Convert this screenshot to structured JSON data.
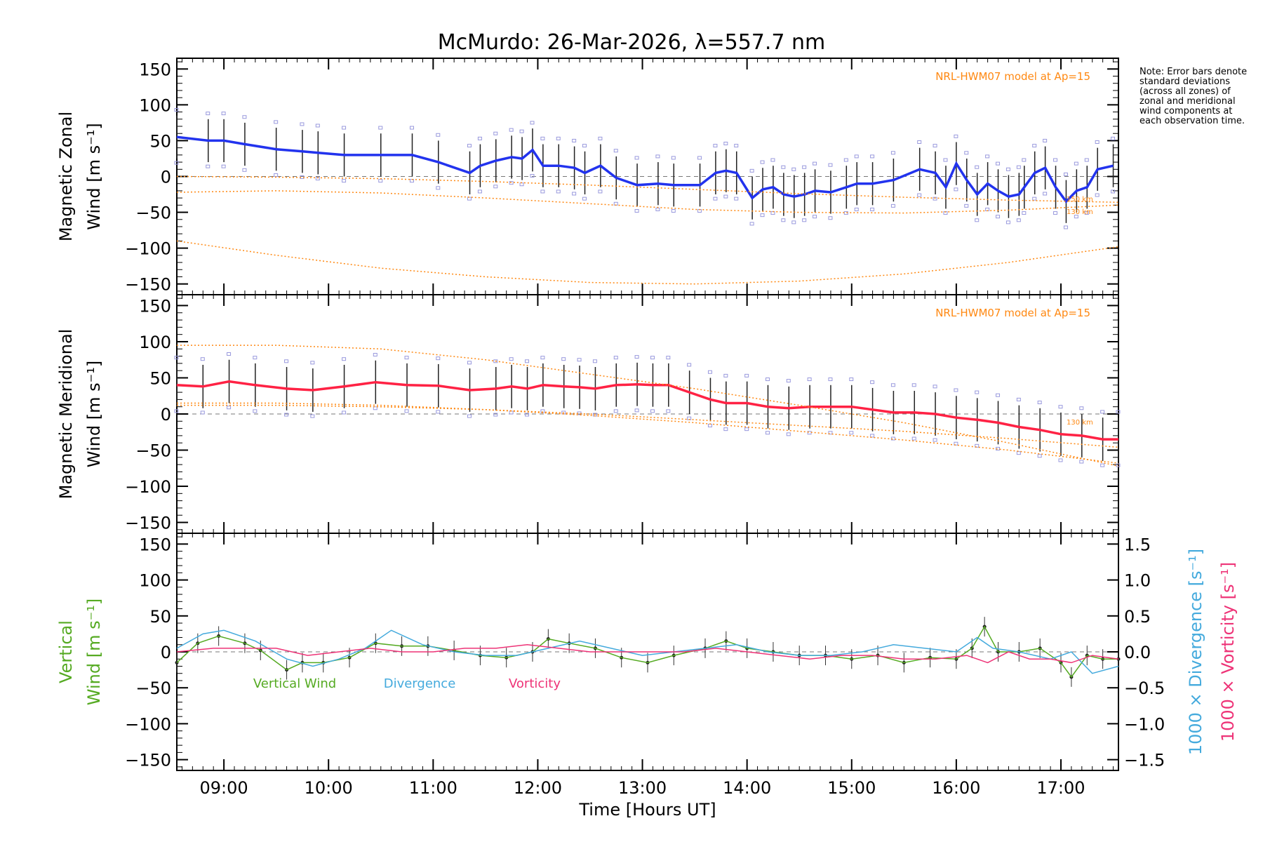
{
  "title": "McMurdo: 26-Mar-2026, λ=557.7 nm",
  "note": "Note: Error bars denote standard deviations (across all zones) of zonal and meridional wind components at each observation time.",
  "chart_data": [
    {
      "type": "line",
      "name": "zonal",
      "ylabel_line1": "Magnetic Zonal",
      "ylabel_line2": "Wind [m s⁻¹]",
      "model_label": "NRL-HWM07 model at Ap=15",
      "ylim": [
        -165,
        165
      ],
      "yticks": [
        150,
        100,
        50,
        0,
        -50,
        -100,
        -150
      ],
      "xlim": [
        8.55,
        17.55
      ],
      "series": [
        {
          "name": "Zonal wind",
          "color": "#2233ee",
          "x": [
            8.55,
            8.85,
            9.0,
            9.2,
            9.5,
            9.75,
            9.9,
            10.15,
            10.5,
            10.8,
            11.05,
            11.35,
            11.45,
            11.6,
            11.75,
            11.85,
            11.95,
            12.05,
            12.2,
            12.35,
            12.45,
            12.6,
            12.75,
            12.95,
            13.15,
            13.3,
            13.55,
            13.7,
            13.8,
            13.9,
            14.05,
            14.15,
            14.25,
            14.35,
            14.45,
            14.55,
            14.65,
            14.8,
            14.95,
            15.05,
            15.2,
            15.4,
            15.65,
            15.8,
            15.9,
            16.0,
            16.1,
            16.2,
            16.3,
            16.4,
            16.5,
            16.6,
            16.65,
            16.75,
            16.85,
            16.95,
            17.05,
            17.15,
            17.25,
            17.35,
            17.5
          ],
          "y": [
            55,
            50,
            50,
            45,
            38,
            35,
            33,
            30,
            30,
            30,
            20,
            5,
            15,
            22,
            27,
            25,
            37,
            15,
            15,
            12,
            5,
            15,
            -2,
            -12,
            -10,
            -12,
            -12,
            5,
            8,
            5,
            -30,
            -18,
            -15,
            -25,
            -28,
            -25,
            -20,
            -22,
            -15,
            -10,
            -10,
            -5,
            10,
            5,
            -15,
            18,
            -5,
            -25,
            -10,
            -20,
            -28,
            -25,
            -15,
            5,
            12,
            -15,
            -35,
            -20,
            -15,
            10,
            15
          ]
        },
        {
          "name": "HWM07 150 km",
          "color": "#ff8811",
          "x": [
            8.55,
            9.5,
            10.5,
            11.5,
            12.5,
            13.5,
            14.5,
            15.5,
            16.5,
            17.55
          ],
          "y": [
            0,
            -1,
            -3,
            -7,
            -12,
            -18,
            -24,
            -29,
            -33,
            -36
          ]
        },
        {
          "name": "HWM07 130 km",
          "color": "#ff8811",
          "x": [
            8.55,
            9.5,
            10.5,
            11.5,
            12.5,
            13.5,
            14.5,
            15.5,
            16.5,
            17.55
          ],
          "y": [
            -22,
            -20,
            -23,
            -30,
            -38,
            -46,
            -50,
            -51,
            -47,
            -40
          ]
        },
        {
          "name": "HWM07 100 km",
          "color": "#ff8811",
          "x": [
            8.55,
            9.5,
            10.5,
            11.5,
            12.5,
            13.5,
            14.5,
            15.5,
            16.5,
            17.55
          ],
          "y": [
            -90,
            -110,
            -128,
            -140,
            -148,
            -150,
            -146,
            -136,
            -120,
            -98
          ]
        }
      ],
      "annotations": [
        "150 km",
        "130 km"
      ]
    },
    {
      "type": "line",
      "name": "meridional",
      "ylabel_line1": "Magnetic Meridional",
      "ylabel_line2": "Wind [m s⁻¹]",
      "model_label": "NRL-HWM07 model at Ap=15",
      "ylim": [
        -165,
        165
      ],
      "yticks": [
        150,
        100,
        50,
        0,
        -50,
        -100,
        -150
      ],
      "xlim": [
        8.55,
        17.55
      ],
      "series": [
        {
          "name": "Meridional wind",
          "color": "#ff2244",
          "x": [
            8.55,
            8.8,
            9.05,
            9.3,
            9.6,
            9.85,
            10.15,
            10.45,
            10.75,
            11.05,
            11.35,
            11.6,
            11.75,
            11.9,
            12.05,
            12.25,
            12.4,
            12.55,
            12.75,
            12.95,
            13.1,
            13.25,
            13.45,
            13.65,
            13.8,
            14.0,
            14.2,
            14.4,
            14.6,
            14.8,
            15.0,
            15.2,
            15.4,
            15.6,
            15.8,
            16.0,
            16.2,
            16.4,
            16.6,
            16.8,
            17.0,
            17.2,
            17.4,
            17.55
          ],
          "y": [
            40,
            38,
            45,
            40,
            35,
            33,
            38,
            44,
            40,
            39,
            33,
            35,
            38,
            35,
            40,
            38,
            37,
            35,
            40,
            41,
            40,
            40,
            30,
            20,
            15,
            15,
            10,
            8,
            10,
            10,
            10,
            6,
            2,
            2,
            0,
            -5,
            -8,
            -12,
            -18,
            -22,
            -28,
            -30,
            -35,
            -35
          ]
        },
        {
          "name": "HWM07 150 km",
          "color": "#ff8811",
          "x": [
            8.55,
            9.5,
            10.5,
            11.5,
            12.5,
            13.5,
            14.5,
            15.5,
            16.5,
            17.55
          ],
          "y": [
            12,
            12,
            10,
            6,
            0,
            -8,
            -16,
            -24,
            -34,
            -46
          ]
        },
        {
          "name": "HWM07 130 km",
          "color": "#ff8811",
          "x": [
            8.55,
            9.5,
            10.5,
            11.5,
            12.5,
            13.5,
            14.5,
            15.5,
            16.5,
            17.55
          ],
          "y": [
            15,
            15,
            12,
            6,
            -2,
            -12,
            -24,
            -36,
            -50,
            -68
          ]
        },
        {
          "name": "HWM07 100 km",
          "color": "#ff8811",
          "x": [
            8.55,
            9.5,
            10.5,
            11.5,
            12.5,
            13.5,
            14.5,
            15.5,
            16.5,
            17.55
          ],
          "y": [
            95,
            95,
            90,
            75,
            55,
            35,
            12,
            -12,
            -40,
            -72
          ]
        }
      ],
      "annotations": [
        "130 km"
      ]
    },
    {
      "type": "line",
      "name": "vertical",
      "ylabel_line1": "Vertical",
      "ylabel_line2": "Wind [m s⁻¹]",
      "ylim": [
        -165,
        165
      ],
      "yticks": [
        150,
        100,
        50,
        0,
        -50,
        -100,
        -150
      ],
      "xlim": [
        8.55,
        17.55
      ],
      "right_ylabel_1": "1000 × Divergence [s⁻¹]",
      "right_ylabel_2": "1000 × Vorticity [s⁻¹]",
      "right_ylim": [
        -1.65,
        1.65
      ],
      "right_yticks": [
        "1.5",
        "1.0",
        "0.5",
        "0.0",
        "−0.5",
        "−1.0",
        "−1.5"
      ],
      "right_ytick_values": [
        1.5,
        1.0,
        0.5,
        0.0,
        -0.5,
        -1.0,
        -1.5
      ],
      "legend": [
        "Vertical Wind",
        "Divergence",
        "Vorticity"
      ],
      "series": [
        {
          "name": "Vertical Wind",
          "color": "#55aa22",
          "axis": "left",
          "x": [
            8.55,
            8.75,
            8.95,
            9.2,
            9.35,
            9.6,
            9.75,
            9.95,
            10.2,
            10.45,
            10.7,
            10.95,
            11.2,
            11.45,
            11.7,
            11.95,
            12.1,
            12.3,
            12.55,
            12.8,
            13.05,
            13.3,
            13.6,
            13.8,
            14.0,
            14.25,
            14.5,
            14.75,
            15.0,
            15.25,
            15.5,
            15.75,
            16.0,
            16.15,
            16.27,
            16.4,
            16.6,
            16.8,
            17.0,
            17.1,
            17.25,
            17.4,
            17.55
          ],
          "y": [
            -15,
            12,
            22,
            12,
            2,
            -25,
            -15,
            -15,
            -8,
            12,
            8,
            8,
            2,
            -5,
            -8,
            0,
            18,
            12,
            5,
            -8,
            -15,
            -5,
            5,
            15,
            5,
            0,
            -5,
            -5,
            -10,
            -5,
            -15,
            -8,
            -10,
            5,
            35,
            0,
            0,
            5,
            -15,
            -35,
            -5,
            -10,
            -10
          ]
        },
        {
          "name": "Divergence",
          "color": "#44aadd",
          "axis": "right",
          "x": [
            8.55,
            8.8,
            9.0,
            9.3,
            9.6,
            9.85,
            10.1,
            10.35,
            10.6,
            10.9,
            11.2,
            11.5,
            11.8,
            12.1,
            12.4,
            12.7,
            13.0,
            13.3,
            13.6,
            13.9,
            14.2,
            14.5,
            14.8,
            15.1,
            15.4,
            15.7,
            16.0,
            16.2,
            16.35,
            16.6,
            16.9,
            17.1,
            17.3,
            17.55
          ],
          "y": [
            0.05,
            0.25,
            0.3,
            0.15,
            -0.1,
            -0.2,
            -0.1,
            0.05,
            0.3,
            0.1,
            0.0,
            -0.05,
            -0.05,
            0.05,
            0.15,
            0.05,
            -0.05,
            0.0,
            0.05,
            0.1,
            0.0,
            -0.05,
            -0.05,
            0.0,
            0.1,
            0.05,
            0.0,
            0.2,
            0.05,
            0.0,
            -0.1,
            0.0,
            -0.3,
            -0.2
          ]
        },
        {
          "name": "Vorticity",
          "color": "#ee3377",
          "axis": "right",
          "x": [
            8.55,
            8.9,
            9.2,
            9.5,
            9.8,
            10.1,
            10.4,
            10.7,
            11.0,
            11.3,
            11.6,
            11.9,
            12.2,
            12.5,
            12.8,
            13.1,
            13.4,
            13.7,
            14.0,
            14.3,
            14.6,
            14.9,
            15.2,
            15.5,
            15.8,
            16.1,
            16.3,
            16.5,
            16.7,
            16.9,
            17.1,
            17.3,
            17.55
          ],
          "y": [
            0.0,
            0.05,
            0.05,
            0.05,
            -0.05,
            0.0,
            0.05,
            0.0,
            0.0,
            0.05,
            0.05,
            0.1,
            0.05,
            0.0,
            0.0,
            0.0,
            0.0,
            0.05,
            0.0,
            -0.05,
            -0.1,
            -0.05,
            -0.05,
            -0.1,
            -0.1,
            -0.05,
            -0.15,
            0.0,
            -0.1,
            -0.1,
            -0.15,
            -0.05,
            -0.1
          ]
        }
      ]
    }
  ],
  "xaxis": {
    "label": "Time [Hours UT]",
    "ticks": [
      9,
      10,
      11,
      12,
      13,
      14,
      15,
      16,
      17
    ],
    "tick_labels": [
      "09:00",
      "10:00",
      "11:00",
      "12:00",
      "13:00",
      "14:00",
      "15:00",
      "16:00",
      "17:00"
    ]
  },
  "colors": {
    "zonal": "#2233ee",
    "meridional": "#ff2244",
    "model": "#ff8811",
    "vertical": "#55aa22",
    "divergence": "#44aadd",
    "vorticity": "#ee3377"
  }
}
